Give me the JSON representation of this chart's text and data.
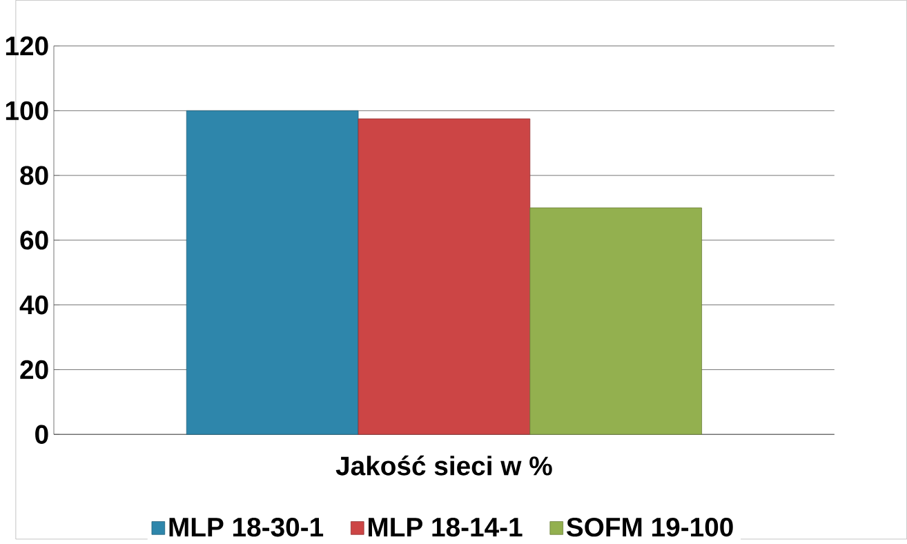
{
  "chart_data": {
    "type": "bar",
    "categories": [
      "Jakość sieci w %"
    ],
    "series": [
      {
        "name": "MLP 18-30-1",
        "color": "#2e86ab",
        "values": [
          100
        ]
      },
      {
        "name": "MLP 18-14-1",
        "color": "#cc4545",
        "values": [
          97.5
        ]
      },
      {
        "name": "SOFM 19-100",
        "color": "#93b04f",
        "values": [
          70
        ]
      }
    ],
    "ylim": [
      0,
      120
    ],
    "yticks": [
      0,
      20,
      40,
      60,
      80,
      100,
      120
    ],
    "grid": "y",
    "legend": "bottom"
  }
}
